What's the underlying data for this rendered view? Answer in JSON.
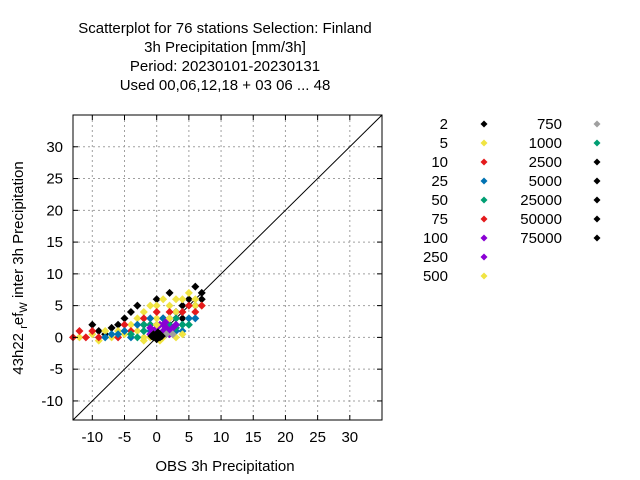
{
  "chart_data": {
    "type": "scatter",
    "title_lines": [
      "Scatterplot for   76 stations Selection: Finland",
      "3h Precipitation [mm/3h]",
      "Period: 20230101-20230131",
      "Used  00,06,12,18  + 03 06 ... 48"
    ],
    "xlabel": "OBS 3h Precipitation",
    "ylabel": "43h22 ref_W inter 3h Precipitation",
    "ylabel_parts": {
      "main": "43h22 ",
      "sub1": "r",
      "mid": "ef",
      "sub2": "W",
      "tail": " inter 3h Precipitation"
    },
    "xlim": [
      -13,
      35
    ],
    "ylim": [
      -13,
      35
    ],
    "xticks": [
      -10,
      -5,
      0,
      5,
      10,
      15,
      20,
      25,
      30
    ],
    "yticks": [
      -10,
      -5,
      0,
      5,
      10,
      15,
      20,
      25,
      30
    ],
    "grid": true,
    "diagonal": true,
    "legend_placement": "right",
    "legend": [
      {
        "label": "2",
        "color": "#000000"
      },
      {
        "label": "5",
        "color": "#f0e442"
      },
      {
        "label": "10",
        "color": "#e41a1c"
      },
      {
        "label": "25",
        "color": "#0072b2"
      },
      {
        "label": "50",
        "color": "#009e73"
      },
      {
        "label": "75",
        "color": "#e41a1c"
      },
      {
        "label": "100",
        "color": "#8a00d4"
      },
      {
        "label": "250",
        "color": "#8a00d4"
      },
      {
        "label": "500",
        "color": "#f0e442"
      },
      {
        "label": "750",
        "color": "#a0a0a0"
      },
      {
        "label": "1000",
        "color": "#009e73"
      },
      {
        "label": "2500",
        "color": "#000000"
      },
      {
        "label": "5000",
        "color": "#000000"
      },
      {
        "label": "25000",
        "color": "#000000"
      },
      {
        "label": "50000",
        "color": "#000000"
      },
      {
        "label": "75000",
        "color": "#000000"
      }
    ],
    "series": [
      {
        "color": "#000000",
        "points": [
          [
            -7,
            1.5
          ],
          [
            -5,
            3
          ],
          [
            -3,
            5
          ],
          [
            0,
            6
          ],
          [
            2,
            7
          ],
          [
            3,
            4
          ],
          [
            4,
            5
          ],
          [
            5,
            6
          ],
          [
            6,
            8
          ],
          [
            7,
            6
          ],
          [
            -10,
            2
          ],
          [
            -6,
            2
          ],
          [
            1,
            3
          ],
          [
            -4,
            4
          ],
          [
            6,
            5
          ],
          [
            7,
            7
          ],
          [
            -9,
            1
          ],
          [
            -8,
            0.5
          ],
          [
            -2,
            2
          ],
          [
            4,
            3
          ]
        ]
      },
      {
        "color": "#f0e442",
        "points": [
          [
            -12,
            0
          ],
          [
            -10,
            0.5
          ],
          [
            -9,
            -0.5
          ],
          [
            -8,
            1
          ],
          [
            -7,
            0
          ],
          [
            -6,
            1
          ],
          [
            -5,
            0.5
          ],
          [
            -4,
            2
          ],
          [
            -3,
            3
          ],
          [
            -2,
            4
          ],
          [
            -1,
            5
          ],
          [
            0,
            5
          ],
          [
            1,
            6
          ],
          [
            2,
            5
          ],
          [
            3,
            6
          ],
          [
            4,
            6
          ],
          [
            5,
            7
          ],
          [
            6,
            5
          ],
          [
            7,
            5
          ],
          [
            -3,
            1
          ],
          [
            -2,
            0
          ],
          [
            0,
            3
          ],
          [
            1,
            2
          ],
          [
            3,
            4
          ],
          [
            5,
            3
          ],
          [
            6,
            6
          ]
        ]
      },
      {
        "color": "#e41a1c",
        "points": [
          [
            -13,
            0
          ],
          [
            -12,
            1
          ],
          [
            -11,
            0
          ],
          [
            -10,
            1
          ],
          [
            -9,
            0
          ],
          [
            -6,
            0
          ],
          [
            -4,
            1
          ],
          [
            -2,
            3
          ],
          [
            0,
            4
          ],
          [
            2,
            4
          ],
          [
            4,
            4
          ],
          [
            5,
            5
          ],
          [
            6,
            4
          ],
          [
            -5,
            2
          ],
          [
            -1,
            2
          ],
          [
            3,
            3
          ],
          [
            7,
            5
          ]
        ]
      },
      {
        "color": "#0072b2",
        "points": [
          [
            -8,
            0
          ],
          [
            -6,
            0.5
          ],
          [
            -5,
            1
          ],
          [
            -4,
            0
          ],
          [
            -3,
            2
          ],
          [
            -2,
            1
          ],
          [
            -1,
            3
          ],
          [
            0,
            2
          ],
          [
            1,
            3
          ],
          [
            2,
            3
          ],
          [
            3,
            2
          ],
          [
            4,
            2
          ],
          [
            5,
            3
          ],
          [
            6,
            3
          ],
          [
            -7,
            0.5
          ],
          [
            -1,
            1
          ],
          [
            2,
            1
          ],
          [
            3,
            1
          ],
          [
            4,
            1
          ]
        ]
      },
      {
        "color": "#009e73",
        "points": [
          [
            -4,
            0.5
          ],
          [
            -3,
            0
          ],
          [
            -2,
            2
          ],
          [
            -1,
            2
          ],
          [
            0,
            1
          ],
          [
            1,
            1
          ],
          [
            2,
            2
          ],
          [
            3,
            3
          ],
          [
            4,
            2
          ],
          [
            5,
            2
          ],
          [
            -2,
            1
          ],
          [
            1,
            0.5
          ],
          [
            3,
            1.5
          ]
        ]
      },
      {
        "color": "#8a00d4",
        "points": [
          [
            -1,
            0.5
          ],
          [
            -0.5,
            1
          ],
          [
            0,
            1.5
          ],
          [
            0.5,
            2
          ],
          [
            1,
            2
          ],
          [
            1.5,
            1.5
          ],
          [
            2,
            1
          ],
          [
            2.5,
            1.5
          ],
          [
            3,
            2
          ],
          [
            0,
            0.5
          ],
          [
            1,
            1
          ],
          [
            2,
            0.5
          ],
          [
            -1,
            1.5
          ],
          [
            1.5,
            2.5
          ]
        ]
      },
      {
        "color": "#f0e442",
        "points": [
          [
            -1,
            0
          ],
          [
            0,
            2
          ],
          [
            1,
            0
          ],
          [
            2,
            3
          ],
          [
            3,
            0
          ],
          [
            4,
            0.5
          ],
          [
            -2,
            -0.5
          ],
          [
            0.5,
            -0.5
          ]
        ]
      },
      {
        "color": "#a0a0a0",
        "points": [
          [
            -0.5,
            0.5
          ],
          [
            0.5,
            0.5
          ],
          [
            1.5,
            0.5
          ],
          [
            2.5,
            0.5
          ]
        ]
      },
      {
        "color": "#000000",
        "points": [
          [
            -0.5,
            0
          ],
          [
            0,
            0
          ],
          [
            0.5,
            0
          ],
          [
            0,
            0.5
          ],
          [
            0,
            -0.3
          ],
          [
            0.3,
            0.3
          ],
          [
            -0.3,
            0.3
          ],
          [
            0.5,
            0.5
          ],
          [
            -0.5,
            0.5
          ],
          [
            0.8,
            0.2
          ],
          [
            -0.8,
            0.2
          ],
          [
            0.2,
            0.8
          ]
        ]
      }
    ]
  }
}
